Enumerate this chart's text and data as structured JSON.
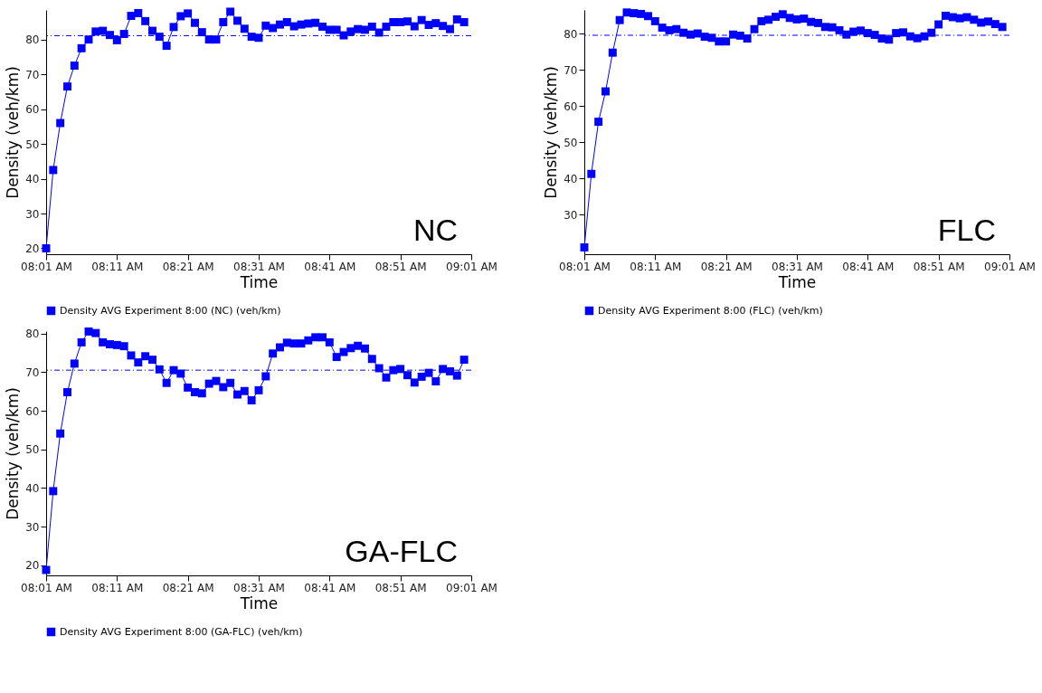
{
  "chart_data": [
    {
      "type": "line",
      "xlabel": "Time",
      "ylabel": "Density (veh/km)",
      "annotations": [
        "NC"
      ],
      "legend": "bottom",
      "grid": false,
      "marker": "square",
      "line_style": "solid",
      "x": [
        8.0167,
        8.0333,
        8.05,
        8.0667,
        8.0833,
        8.1,
        8.1167,
        8.1333,
        8.15,
        8.1667,
        8.1833,
        8.2,
        8.2167,
        8.2333,
        8.25,
        8.2667,
        8.2833,
        8.3,
        8.3167,
        8.3333,
        8.35,
        8.3667,
        8.3833,
        8.4,
        8.4167,
        8.4333,
        8.45,
        8.4667,
        8.4833,
        8.5,
        8.5167,
        8.5333,
        8.55,
        8.5667,
        8.5833,
        8.6,
        8.6167,
        8.6333,
        8.65,
        8.6667,
        8.6833,
        8.7,
        8.7167,
        8.7333,
        8.75,
        8.7667,
        8.7833,
        8.8,
        8.8167,
        8.8333,
        8.85,
        8.8667,
        8.8833,
        8.9,
        8.9167,
        8.9333,
        8.95,
        8.9667,
        8.9833,
        9.0
      ],
      "series": [
        {
          "name": "Density AVG Experiment 8:00 (NC) (veh/km)",
          "color": "#0000ff",
          "values": [
            20,
            42.5,
            56,
            66.5,
            72.5,
            77.5,
            80,
            82.3,
            82.5,
            81.3,
            79.8,
            81.6,
            86.8,
            87.6,
            85.3,
            82.5,
            80.8,
            78.2,
            83.6,
            86.7,
            87.5,
            84.8,
            82.1,
            80,
            80,
            85,
            88,
            85.4,
            83.1,
            80.8,
            80.5,
            84,
            83.3,
            84.3,
            85,
            83.8,
            84.3,
            84.6,
            84.8,
            83.7,
            82.8,
            82.8,
            81.2,
            82.3,
            83,
            82.8,
            83.7,
            82,
            83.7,
            85,
            85,
            85.2,
            83.8,
            85.6,
            84.2,
            84.7,
            83.9,
            83,
            85.8,
            85
          ]
        }
      ],
      "xlim": [
        8.0167,
        9.0167
      ],
      "xticks": [
        {
          "value": 8.0167,
          "label": "08:01 AM"
        },
        {
          "value": 8.1833,
          "label": "08:11 AM"
        },
        {
          "value": 8.35,
          "label": "08:21 AM"
        },
        {
          "value": 8.5167,
          "label": "08:31 AM"
        },
        {
          "value": 8.6833,
          "label": "08:41 AM"
        },
        {
          "value": 8.85,
          "label": "08:51 AM"
        },
        {
          "value": 9.0167,
          "label": "09:01 AM"
        }
      ],
      "ylim": [
        18.3,
        88.5
      ],
      "yticks": [
        20,
        30,
        40,
        50,
        60,
        70,
        80
      ],
      "ref_lines": [
        {
          "axis": "y",
          "value": 81.1,
          "color": "#0000ff",
          "line_style": "dashed"
        }
      ]
    },
    {
      "type": "line",
      "xlabel": "Time",
      "ylabel": "Density (veh/km)",
      "annotations": [
        "FLC"
      ],
      "legend": "bottom",
      "grid": false,
      "marker": "square",
      "line_style": "solid",
      "x": [
        8.0167,
        8.0333,
        8.05,
        8.0667,
        8.0833,
        8.1,
        8.1167,
        8.1333,
        8.15,
        8.1667,
        8.1833,
        8.2,
        8.2167,
        8.2333,
        8.25,
        8.2667,
        8.2833,
        8.3,
        8.3167,
        8.3333,
        8.35,
        8.3667,
        8.3833,
        8.4,
        8.4167,
        8.4333,
        8.45,
        8.4667,
        8.4833,
        8.5,
        8.5167,
        8.5333,
        8.55,
        8.5667,
        8.5833,
        8.6,
        8.6167,
        8.6333,
        8.65,
        8.6667,
        8.6833,
        8.7,
        8.7167,
        8.7333,
        8.75,
        8.7667,
        8.7833,
        8.8,
        8.8167,
        8.8333,
        8.85,
        8.8667,
        8.8833,
        8.9,
        8.9167,
        8.9333,
        8.95,
        8.9667,
        8.9833,
        9.0
      ],
      "series": [
        {
          "name": "Density AVG Experiment 8:00 (FLC) (veh/km)",
          "color": "#0000ff",
          "values": [
            21,
            41.3,
            55.7,
            64.1,
            74.8,
            83.8,
            85.9,
            85.7,
            85.5,
            84.9,
            83.5,
            81.7,
            81,
            81.3,
            80.3,
            79.8,
            80.1,
            79.2,
            78.9,
            77.9,
            77.9,
            79.8,
            79.5,
            78.7,
            81.3,
            83.5,
            83.9,
            84.7,
            85.4,
            84.4,
            84,
            84.2,
            83.3,
            83,
            81.9,
            81.8,
            81,
            79.8,
            80.6,
            80.9,
            80.2,
            79.7,
            78.7,
            78.4,
            80.2,
            80.4,
            79.3,
            78.8,
            79.3,
            80.3,
            82.6,
            85,
            84.6,
            84.3,
            84.6,
            83.9,
            83.1,
            83.4,
            82.7,
            81.9
          ]
        }
      ],
      "xlim": [
        8.0167,
        9.0167
      ],
      "xticks": [
        {
          "value": 8.0167,
          "label": "08:01 AM"
        },
        {
          "value": 8.1833,
          "label": "08:11 AM"
        },
        {
          "value": 8.35,
          "label": "08:21 AM"
        },
        {
          "value": 8.5167,
          "label": "08:31 AM"
        },
        {
          "value": 8.6833,
          "label": "08:41 AM"
        },
        {
          "value": 8.85,
          "label": "08:51 AM"
        },
        {
          "value": 9.0167,
          "label": "09:01 AM"
        }
      ],
      "ylim": [
        19.1,
        86.6
      ],
      "yticks": [
        30,
        40,
        50,
        60,
        70,
        80
      ],
      "ref_lines": [
        {
          "axis": "y",
          "value": 79.6,
          "color": "#0000ff",
          "line_style": "dashed"
        }
      ]
    },
    {
      "type": "line",
      "xlabel": "Time",
      "ylabel": "Density (veh/km)",
      "annotations": [
        "GA-FLC"
      ],
      "legend": "bottom",
      "grid": false,
      "marker": "square",
      "line_style": "solid",
      "x": [
        8.0167,
        8.0333,
        8.05,
        8.0667,
        8.0833,
        8.1,
        8.1167,
        8.1333,
        8.15,
        8.1667,
        8.1833,
        8.2,
        8.2167,
        8.2333,
        8.25,
        8.2667,
        8.2833,
        8.3,
        8.3167,
        8.3333,
        8.35,
        8.3667,
        8.3833,
        8.4,
        8.4167,
        8.4333,
        8.45,
        8.4667,
        8.4833,
        8.5,
        8.5167,
        8.5333,
        8.55,
        8.5667,
        8.5833,
        8.6,
        8.6167,
        8.6333,
        8.65,
        8.6667,
        8.6833,
        8.7,
        8.7167,
        8.7333,
        8.75,
        8.7667,
        8.7833,
        8.8,
        8.8167,
        8.8333,
        8.85,
        8.8667,
        8.8833,
        8.9,
        8.9167,
        8.9333,
        8.95,
        8.9667,
        8.9833,
        9.0
      ],
      "series": [
        {
          "name": "Density AVG Experiment 8:00 (GA-FLC) (veh/km)",
          "color": "#0000ff",
          "values": [
            18.8,
            39.2,
            54.1,
            64.8,
            72.2,
            77.7,
            80.5,
            80.1,
            77.7,
            77.2,
            77,
            76.7,
            74.3,
            72.5,
            74.1,
            73.2,
            70.7,
            67.2,
            70.5,
            69.6,
            66,
            64.8,
            64.5,
            67,
            67.7,
            66.1,
            67.2,
            64.2,
            65.1,
            62.7,
            65.3,
            68.9,
            74.8,
            76.4,
            77.6,
            77.4,
            77.4,
            78.2,
            79,
            79,
            77.7,
            73.9,
            75.2,
            76.2,
            76.8,
            76.1,
            73.4,
            71,
            68.6,
            70.5,
            70.8,
            69.2,
            67.3,
            68.8,
            69.8,
            67.6,
            70.8,
            70.2,
            69.1,
            73.2
          ]
        }
      ],
      "xlim": [
        8.0167,
        9.0167
      ],
      "xticks": [
        {
          "value": 8.0167,
          "label": "08:01 AM"
        },
        {
          "value": 8.1833,
          "label": "08:11 AM"
        },
        {
          "value": 8.35,
          "label": "08:21 AM"
        },
        {
          "value": 8.5167,
          "label": "08:31 AM"
        },
        {
          "value": 8.6833,
          "label": "08:41 AM"
        },
        {
          "value": 8.85,
          "label": "08:51 AM"
        },
        {
          "value": 9.0167,
          "label": "09:01 AM"
        }
      ],
      "ylim": [
        17.4,
        80.6
      ],
      "yticks": [
        20,
        30,
        40,
        50,
        60,
        70,
        80
      ],
      "ref_lines": [
        {
          "axis": "y",
          "value": 70.5,
          "color": "#0000ff",
          "line_style": "dashed"
        }
      ]
    }
  ]
}
